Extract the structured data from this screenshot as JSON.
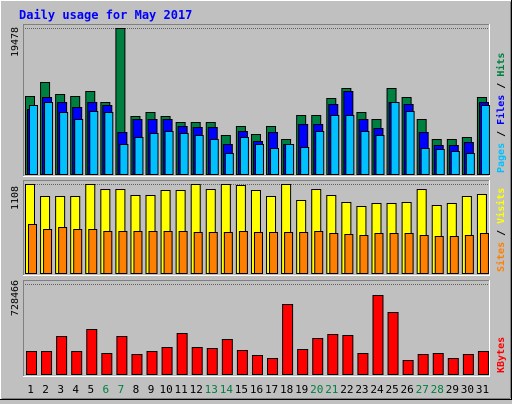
{
  "title": "Daily usage for May 2017",
  "colors": {
    "hits": "#008040",
    "files": "#0000ff",
    "pages": "#00c0ff",
    "visits": "#ffff00",
    "sites": "#ff8000",
    "kbytes": "#ff0000",
    "title": "#0000ff",
    "weekend_day": "#008040",
    "weekday": "#000000",
    "panel_bg": "#c0c0c0"
  },
  "chart_data": [
    {
      "type": "bar",
      "panel": "hits-files-pages",
      "ymax_label": "19478",
      "ymax": 19478,
      "legend": [
        "Pages",
        "Files",
        "Hits"
      ],
      "legend_separator": " / ",
      "categories": [
        "1",
        "2",
        "3",
        "4",
        "5",
        "6",
        "7",
        "8",
        "9",
        "10",
        "11",
        "12",
        "13",
        "14",
        "15",
        "16",
        "17",
        "18",
        "19",
        "20",
        "21",
        "22",
        "23",
        "24",
        "25",
        "26",
        "27",
        "28",
        "29",
        "30",
        "31"
      ],
      "series": [
        {
          "name": "Hits",
          "values": [
            10530,
            12330,
            10790,
            10530,
            11090,
            9730,
            19478,
            7850,
            8350,
            7840,
            7010,
            7010,
            7010,
            5350,
            6530,
            5470,
            6530,
            4830,
            7980,
            7970,
            10150,
            11530,
            8290,
            7460,
            11530,
            10400,
            7460,
            4830,
            4830,
            5000,
            10400
          ]
        },
        {
          "name": "Files",
          "values": [
            8700,
            10400,
            9730,
            8970,
            9730,
            9210,
            5740,
            7460,
            7460,
            7460,
            6440,
            6350,
            6350,
            4140,
            5840,
            4480,
            5700,
            4140,
            6700,
            6700,
            9410,
            11130,
            7460,
            6270,
            9730,
            9360,
            5730,
            3970,
            3970,
            4310,
            9730
          ]
        },
        {
          "name": "Pages",
          "values": [
            9210,
            9730,
            8350,
            7460,
            8540,
            8350,
            4140,
            5000,
            5620,
            5840,
            5620,
            5350,
            4830,
            2920,
            5000,
            4140,
            3580,
            4140,
            3700,
            5850,
            7910,
            7910,
            5880,
            5350,
            9730,
            8540,
            3570,
            3390,
            3130,
            2930,
            9210
          ]
        }
      ]
    },
    {
      "type": "bar",
      "panel": "visits-sites",
      "ymax_label": "1108",
      "ymax": 1108,
      "legend": [
        "Sites",
        "Visits"
      ],
      "legend_separator": " / ",
      "categories": [
        "1",
        "2",
        "3",
        "4",
        "5",
        "6",
        "7",
        "8",
        "9",
        "10",
        "11",
        "12",
        "13",
        "14",
        "15",
        "16",
        "17",
        "18",
        "19",
        "20",
        "21",
        "22",
        "23",
        "24",
        "25",
        "26",
        "27",
        "28",
        "29",
        "30",
        "31"
      ],
      "series": [
        {
          "name": "Visits",
          "values": [
            1108,
            960,
            960,
            960,
            1108,
            1050,
            1050,
            970,
            970,
            1030,
            1030,
            1108,
            1050,
            1108,
            1090,
            1030,
            960,
            1108,
            910,
            1050,
            970,
            890,
            840,
            870,
            870,
            890,
            1050,
            850,
            870,
            960,
            980
          ]
        },
        {
          "name": "Sites",
          "values": [
            610,
            560,
            575,
            560,
            550,
            535,
            535,
            535,
            535,
            535,
            535,
            520,
            515,
            520,
            530,
            520,
            515,
            520,
            520,
            530,
            510,
            495,
            480,
            500,
            500,
            500,
            485,
            470,
            470,
            480,
            505
          ]
        }
      ]
    },
    {
      "type": "bar",
      "panel": "kbytes",
      "ymax_label": "728466",
      "ymax": 728466,
      "legend": [
        "KBytes"
      ],
      "legend_separator": "",
      "categories": [
        "1",
        "2",
        "3",
        "4",
        "5",
        "6",
        "7",
        "8",
        "9",
        "10",
        "11",
        "12",
        "13",
        "14",
        "15",
        "16",
        "17",
        "18",
        "19",
        "20",
        "21",
        "22",
        "23",
        "24",
        "25",
        "26",
        "27",
        "28",
        "29",
        "30",
        "31"
      ],
      "series": [
        {
          "name": "KBytes",
          "values": [
            195000,
            195000,
            314000,
            189000,
            365000,
            179000,
            315000,
            168000,
            195000,
            221000,
            335000,
            222000,
            216000,
            289000,
            201000,
            162000,
            137000,
            567000,
            207000,
            294000,
            328000,
            320000,
            173000,
            641000,
            507000,
            117000,
            167000,
            173000,
            140000,
            170000,
            191000
          ]
        }
      ]
    }
  ],
  "day_labels": [
    {
      "label": "1",
      "weekend": false
    },
    {
      "label": "2",
      "weekend": false
    },
    {
      "label": "3",
      "weekend": false
    },
    {
      "label": "4",
      "weekend": false
    },
    {
      "label": "5",
      "weekend": false
    },
    {
      "label": "6",
      "weekend": true
    },
    {
      "label": "7",
      "weekend": true
    },
    {
      "label": "8",
      "weekend": false
    },
    {
      "label": "9",
      "weekend": false
    },
    {
      "label": "10",
      "weekend": false
    },
    {
      "label": "11",
      "weekend": false
    },
    {
      "label": "12",
      "weekend": false
    },
    {
      "label": "13",
      "weekend": true
    },
    {
      "label": "14",
      "weekend": true
    },
    {
      "label": "15",
      "weekend": false
    },
    {
      "label": "16",
      "weekend": false
    },
    {
      "label": "17",
      "weekend": false
    },
    {
      "label": "18",
      "weekend": false
    },
    {
      "label": "19",
      "weekend": false
    },
    {
      "label": "20",
      "weekend": true
    },
    {
      "label": "21",
      "weekend": true
    },
    {
      "label": "22",
      "weekend": false
    },
    {
      "label": "23",
      "weekend": false
    },
    {
      "label": "24",
      "weekend": false
    },
    {
      "label": "25",
      "weekend": false
    },
    {
      "label": "26",
      "weekend": false
    },
    {
      "label": "27",
      "weekend": true
    },
    {
      "label": "28",
      "weekend": true
    },
    {
      "label": "29",
      "weekend": false
    },
    {
      "label": "30",
      "weekend": false
    },
    {
      "label": "31",
      "weekend": false
    }
  ]
}
